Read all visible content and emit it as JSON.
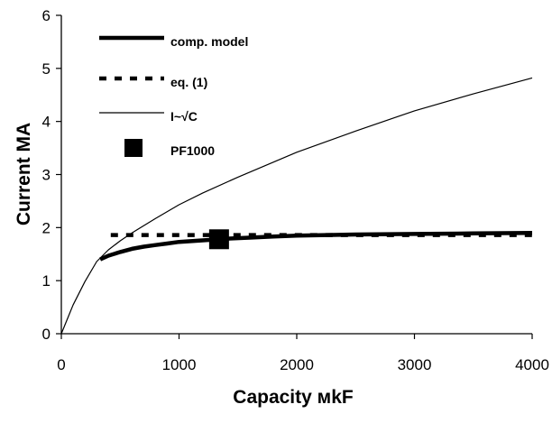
{
  "chart_data": {
    "type": "line",
    "xlabel": "Capacity  мkF",
    "ylabel": "Current MA",
    "xlim": [
      0,
      4000
    ],
    "ylim": [
      0,
      6
    ],
    "xticks": [
      "0",
      "1000",
      "2000",
      "3000",
      "4000"
    ],
    "yticks": [
      "0",
      "1",
      "2",
      "3",
      "4",
      "5",
      "6"
    ],
    "grid": false,
    "legend_position": "top-left",
    "series": [
      {
        "name": "comp. model",
        "style": "thick-solid",
        "x": [
          330,
          400,
          500,
          600,
          700,
          800,
          900,
          1000,
          1200,
          1400,
          1600,
          1800,
          2000,
          2500,
          3000,
          3500,
          4000
        ],
        "y": [
          1.4,
          1.47,
          1.54,
          1.6,
          1.64,
          1.67,
          1.7,
          1.73,
          1.76,
          1.79,
          1.81,
          1.83,
          1.85,
          1.87,
          1.88,
          1.89,
          1.9
        ]
      },
      {
        "name": "eq. (1)",
        "style": "dashed",
        "x": [
          420,
          4000
        ],
        "y": [
          1.86,
          1.86
        ]
      },
      {
        "name": "I~√C",
        "style": "thin-solid",
        "x": [
          0,
          50,
          100,
          200,
          300,
          400,
          500,
          600,
          800,
          1000,
          1200,
          1500,
          2000,
          2500,
          3000,
          3500,
          4000
        ],
        "y": [
          0,
          0.27,
          0.54,
          0.98,
          1.36,
          1.58,
          1.75,
          1.9,
          2.17,
          2.43,
          2.65,
          2.95,
          3.42,
          3.82,
          4.2,
          4.52,
          4.82
        ]
      },
      {
        "name": "PF1000",
        "style": "square-marker",
        "x": [
          1340
        ],
        "y": [
          1.78
        ]
      }
    ]
  }
}
